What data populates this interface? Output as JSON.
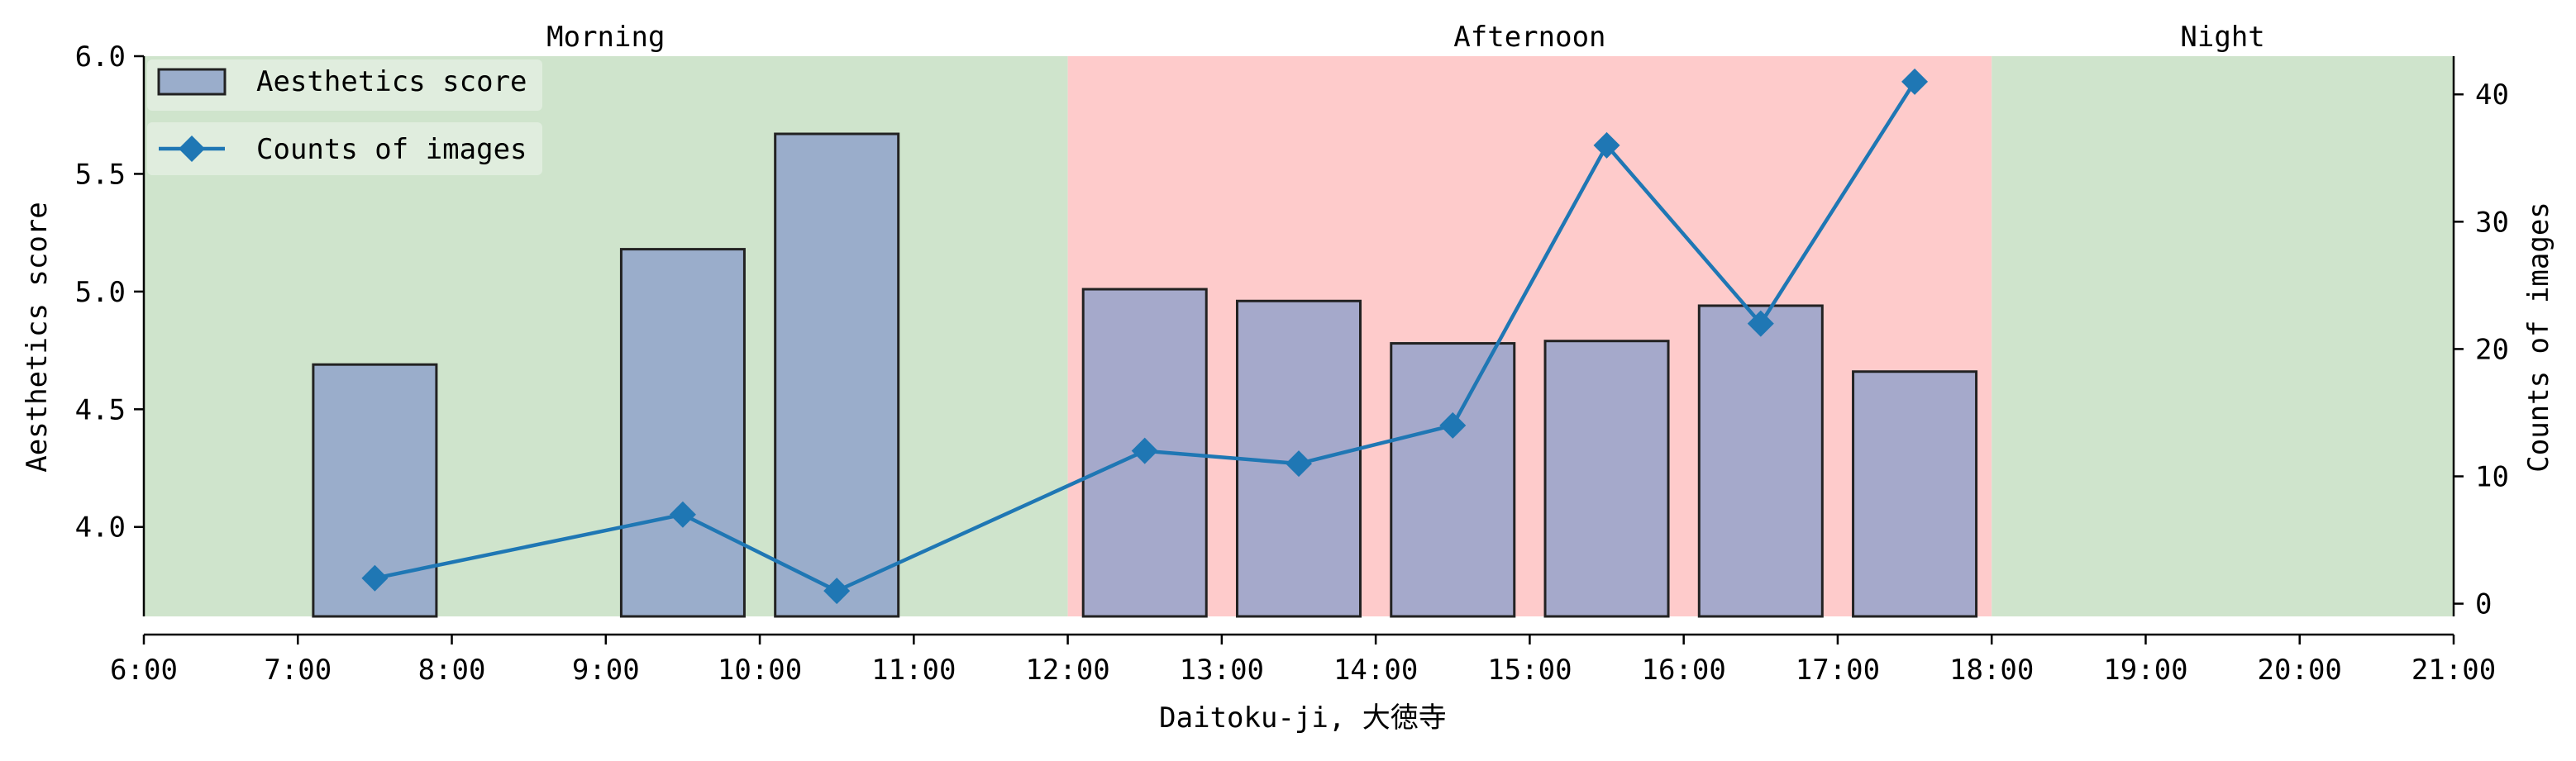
{
  "chart_data": {
    "type": "bar",
    "xlabel": "Daitoku-ji, 大徳寺",
    "ylabel": "Aesthetics score",
    "y2label": "Counts of images",
    "xlim": [
      6,
      21
    ],
    "ylim": [
      3.62,
      6.0
    ],
    "y2lim": [
      -1,
      43
    ],
    "x_ticks": [
      "6:00",
      "7:00",
      "8:00",
      "9:00",
      "10:00",
      "11:00",
      "12:00",
      "13:00",
      "14:00",
      "15:00",
      "16:00",
      "17:00",
      "18:00",
      "19:00",
      "20:00",
      "21:00"
    ],
    "y_ticks": [
      "4.0",
      "4.5",
      "5.0",
      "5.5",
      "6.0"
    ],
    "y2_ticks": [
      "0",
      "10",
      "20",
      "30",
      "40"
    ],
    "periods": [
      {
        "label": "Morning",
        "start": 6,
        "end": 12,
        "color": "#cfe4cc"
      },
      {
        "label": "Afternoon",
        "start": 12,
        "end": 18,
        "color": "#fecbcb"
      },
      {
        "label": "Night",
        "start": 18,
        "end": 21,
        "color": "#cfe4cc"
      }
    ],
    "series": [
      {
        "name": "Aesthetics score",
        "kind": "bar",
        "axis": "left",
        "color": "#9aadcb",
        "x": [
          7.5,
          9.5,
          10.5,
          12.5,
          13.5,
          14.5,
          15.5,
          16.5,
          17.5
        ],
        "values": [
          4.69,
          5.18,
          5.67,
          5.01,
          4.96,
          4.78,
          4.79,
          4.94,
          4.66
        ]
      },
      {
        "name": "Counts of images",
        "kind": "line",
        "axis": "right",
        "color": "#1f77b4",
        "marker": "diamond",
        "x": [
          7.5,
          9.5,
          10.5,
          12.5,
          13.5,
          14.5,
          15.5,
          16.5,
          17.5
        ],
        "values": [
          2,
          7,
          1,
          12,
          11,
          14,
          36,
          22,
          41
        ]
      }
    ],
    "legend": {
      "placement": "top-left"
    },
    "grid": false
  }
}
